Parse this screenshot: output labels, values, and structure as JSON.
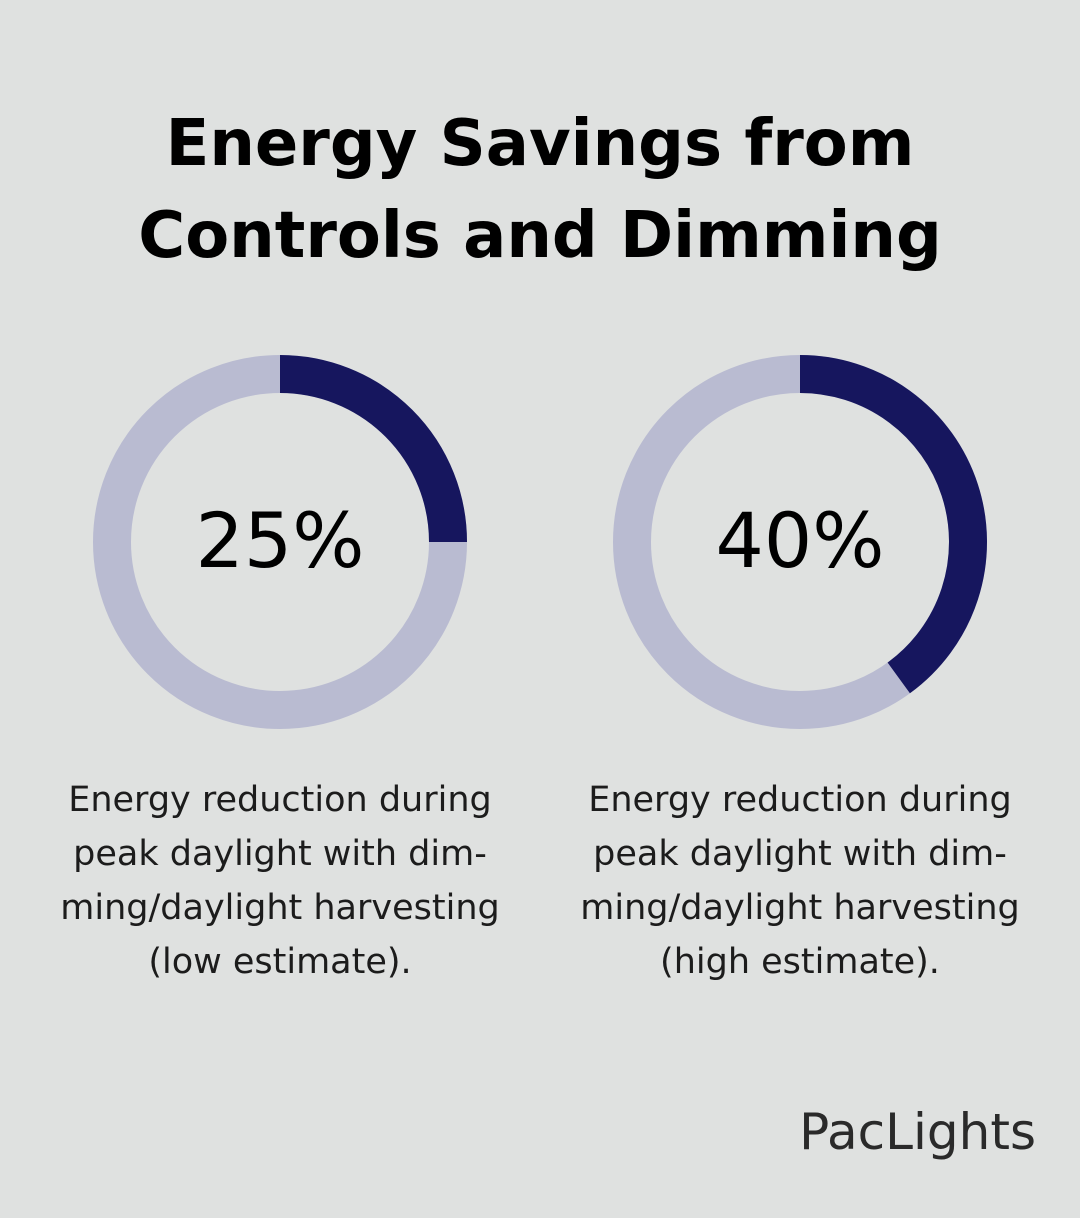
{
  "title_lines": [
    "Energy Savings from",
    "Controls and Dimming"
  ],
  "colors": {
    "background": "#dfe1e0",
    "track": "#b9bbd1",
    "fill": "#16165e",
    "text": "#000000"
  },
  "chart_data": [
    {
      "type": "pie",
      "variant": "donut",
      "value": 25,
      "max": 100,
      "label": "25%",
      "caption_lines": [
        "Energy reduction during",
        "peak daylight with dim-",
        "ming/daylight harvesting",
        "(low estimate)."
      ]
    },
    {
      "type": "pie",
      "variant": "donut",
      "value": 40,
      "max": 100,
      "label": "40%",
      "caption_lines": [
        "Energy reduction during",
        "peak daylight with dim-",
        "ming/daylight harvesting",
        "(high estimate)."
      ]
    }
  ],
  "brand": "PacLights"
}
